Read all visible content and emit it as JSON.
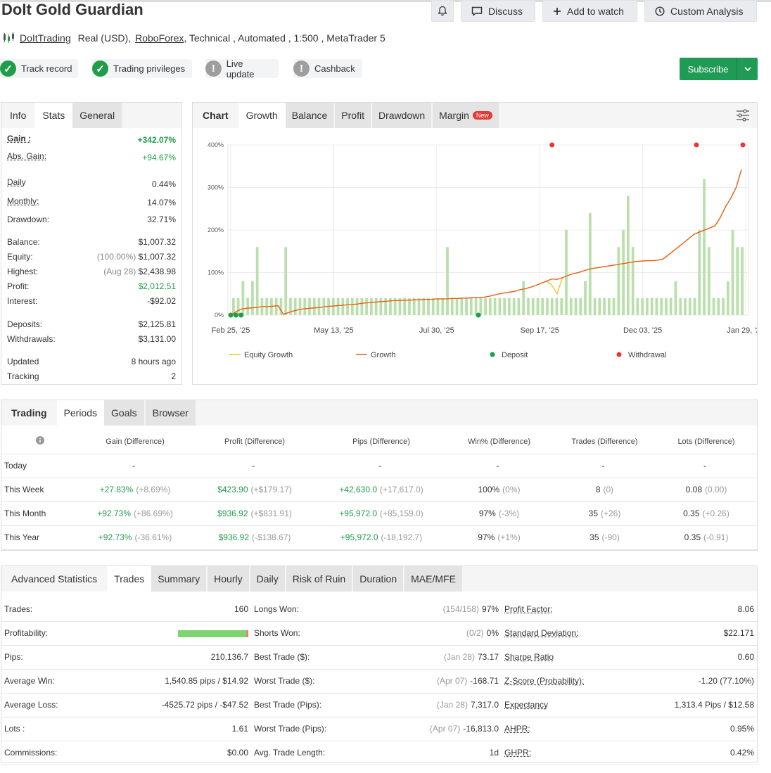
{
  "header": {
    "title": "DoIt Gold Guardian",
    "discuss_label": "Discuss",
    "watch_label": "Add to watch",
    "analysis_label": "Custom Analysis",
    "author": "DoItTrading",
    "account_type": "Real (USD),",
    "broker": "RoboForex",
    "details": ", Technical , Automated , 1:500 , MetaTrader 5"
  },
  "badges": [
    {
      "label": "Track record",
      "status": "ok"
    },
    {
      "label": "Trading privileges",
      "status": "ok"
    },
    {
      "label": "Live update",
      "status": "na"
    },
    {
      "label": "Cashback",
      "status": "na"
    }
  ],
  "subscribe_label": "Subscribe",
  "info": {
    "tabs": [
      "Info",
      "Stats",
      "General"
    ],
    "gain_label": "Gain :",
    "gain": "+342.07%",
    "abs_gain_label": "Abs. Gain:",
    "abs_gain": "+94.67%",
    "daily_label": "Daily",
    "daily": "0.44%",
    "monthly_label": "Monthly:",
    "monthly": "14.07%",
    "drawdown_label": "Drawdown:",
    "drawdown": "32.71%",
    "balance_label": "Balance:",
    "balance": "$1,007.32",
    "equity_label": "Equity:",
    "equity_pct": "(100.00%)",
    "equity": "$1,007.32",
    "highest_label": "Highest:",
    "highest_date": "(Aug 28)",
    "highest": "$2,438.98",
    "profit_label": "Profit:",
    "profit": "$2,012.51",
    "interest_label": "Interest:",
    "interest": "-$92.02",
    "deposits_label": "Deposits:",
    "deposits": "$2,125.81",
    "withdrawals_label": "Withdrawals:",
    "withdrawals": "$3,131.00",
    "updated_label": "Updated",
    "updated": "8 hours ago",
    "tracking_label": "Tracking",
    "tracking": "2"
  },
  "chart_panel": {
    "tabs": [
      "Chart",
      "Growth",
      "Balance",
      "Profit",
      "Drawdown",
      "Margin"
    ],
    "new_badge": "New"
  },
  "chart_data": {
    "type": "line",
    "x_ticks": [
      "Feb 25, '25",
      "May 13, '25",
      "Jul 30, '25",
      "Sep 17, '25",
      "Dec 03, '25",
      "Jan 29, '26"
    ],
    "y_ticks": [
      "0%",
      "100%",
      "200%",
      "300%",
      "400%"
    ],
    "ylim": [
      0,
      400
    ],
    "legend": [
      "Equity Growth",
      "Growth",
      "Deposit",
      "Withdrawal"
    ],
    "legend_position": "bottom",
    "colors": {
      "growth": "#e8591a",
      "equity": "#f0c419",
      "bars": "#b9dfaa",
      "deposit": "#1f9d4a",
      "withdrawal": "#e53935"
    },
    "growth": [
      0,
      8,
      14,
      16,
      17,
      18,
      20,
      20,
      21,
      22,
      2,
      6,
      10,
      13,
      15,
      16,
      17,
      18,
      20,
      21,
      22,
      23,
      24,
      25,
      26,
      28,
      29,
      30,
      31,
      32,
      33,
      34,
      34,
      35,
      35,
      36,
      36,
      37,
      37,
      38,
      38,
      38,
      39,
      39,
      40,
      40,
      41,
      41,
      42,
      44,
      47,
      50,
      52,
      54,
      56,
      60,
      62,
      66,
      70,
      75,
      80,
      85,
      84,
      88,
      93,
      97,
      100,
      104,
      108,
      110,
      112,
      114,
      116,
      118,
      120,
      122,
      124,
      126,
      127,
      128,
      128,
      129,
      131,
      140,
      150,
      160,
      170,
      180,
      190,
      195,
      200,
      205,
      210,
      230,
      255,
      275,
      300,
      342
    ],
    "equity": [
      0,
      8,
      14,
      16,
      17,
      18,
      20,
      20,
      21,
      22,
      2,
      6,
      10,
      13,
      15,
      16,
      17,
      18,
      20,
      21,
      22,
      23,
      24,
      25,
      26,
      28,
      29,
      30,
      31,
      32,
      33,
      34,
      34,
      35,
      35,
      36,
      36,
      37,
      37,
      38,
      38,
      38,
      39,
      39,
      40,
      40,
      41,
      41,
      42,
      44,
      47,
      50,
      52,
      54,
      56,
      60,
      62,
      66,
      70,
      75,
      80,
      70,
      50,
      88,
      93,
      97,
      100,
      104,
      108,
      110,
      112,
      114,
      116,
      118,
      120,
      122,
      124,
      126,
      127,
      128,
      128,
      129,
      131,
      140,
      150,
      160,
      170,
      180,
      190,
      195,
      200,
      205,
      210,
      230,
      255,
      275,
      300,
      342
    ],
    "bars": [
      40,
      40,
      80,
      40,
      80,
      160,
      40,
      40,
      40,
      40,
      40,
      160,
      40,
      40,
      40,
      40,
      40,
      40,
      40,
      40,
      40,
      40,
      40,
      40,
      40,
      40,
      40,
      40,
      40,
      40,
      40,
      40,
      40,
      40,
      40,
      40,
      40,
      40,
      40,
      40,
      40,
      40,
      40,
      40,
      40,
      160,
      40,
      40,
      40,
      40,
      40,
      40,
      40,
      40,
      40,
      40,
      40,
      40,
      40,
      40,
      40,
      80,
      40,
      40,
      40,
      40,
      40,
      40,
      40,
      40,
      200,
      40,
      40,
      40,
      80,
      240,
      40,
      40,
      40,
      40,
      40,
      160,
      200,
      280,
      160,
      40,
      40,
      40,
      40,
      40,
      40,
      40,
      40,
      80,
      40,
      40,
      40,
      40,
      200,
      320,
      160,
      40,
      40,
      40,
      80,
      200,
      160,
      160
    ],
    "deposits_x": [
      0,
      1,
      2,
      48
    ],
    "withdrawals_x": [
      62,
      90,
      99
    ]
  },
  "periods": {
    "tabs": [
      "Trading",
      "Periods",
      "Goals",
      "Browser"
    ],
    "info_icon": "info-icon",
    "headers": [
      "Gain (Difference)",
      "Profit (Difference)",
      "Pips (Difference)",
      "Win% (Difference)",
      "Trades (Difference)",
      "Lots (Difference)"
    ],
    "rows": [
      {
        "label": "Today",
        "gain": "-",
        "gain_d": "",
        "profit": "-",
        "profit_d": "",
        "pips": "-",
        "pips_d": "",
        "win": "-",
        "win_d": "",
        "trades": "-",
        "trades_d": "",
        "lots": "-",
        "lots_d": ""
      },
      {
        "label": "This Week",
        "gain": "+27.83%",
        "gain_d": "(+8.69%)",
        "profit": "$423.90",
        "profit_d": "(+$179.17)",
        "pips": "+42,630.0",
        "pips_d": "(+17,617.0)",
        "win": "100%",
        "win_d": "(0%)",
        "trades": "8",
        "trades_d": "(0)",
        "lots": "0.08",
        "lots_d": "(0.00)"
      },
      {
        "label": "This Month",
        "gain": "+92.73%",
        "gain_d": "(+86.69%)",
        "profit": "$936.92",
        "profit_d": "(+$831.91)",
        "pips": "+95,972.0",
        "pips_d": "(+85,159.0)",
        "win": "97%",
        "win_d": "(-3%)",
        "trades": "35",
        "trades_d": "(+26)",
        "lots": "0.35",
        "lots_d": "(+0.26)"
      },
      {
        "label": "This Year",
        "gain": "+92.73%",
        "gain_d": "(-36.61%)",
        "profit": "$936.92",
        "profit_d": "(-$138.67)",
        "pips": "+95,972.0",
        "pips_d": "(-18,192.7)",
        "win": "97%",
        "win_d": "(+1%)",
        "trades": "35",
        "trades_d": "(-90)",
        "lots": "0.35",
        "lots_d": "(-0.91)"
      }
    ]
  },
  "advanced": {
    "tabs": [
      "Advanced Statistics",
      "Trades",
      "Summary",
      "Hourly",
      "Daily",
      "Risk of Ruin",
      "Duration",
      "MAE/MFE"
    ],
    "profitability_pct": 97,
    "rows": [
      {
        "k1": "Trades:",
        "v1": "160",
        "k2": "Longs Won:",
        "m2": "(154/158)",
        "v2": "97%",
        "k3": "Profit Factor:",
        "v3": "8.06"
      },
      {
        "k1": "Profitability:",
        "v1": "",
        "k2": "Shorts Won:",
        "m2": "(0/2)",
        "v2": "0%",
        "k3": "Standard Deviation:",
        "v3": "$22.171"
      },
      {
        "k1": "Pips:",
        "v1": "210,136.7",
        "k2": "Best Trade ($):",
        "m2": "(Jan 28)",
        "v2": "73.17",
        "k3": "Sharpe Ratio",
        "v3": "0.60"
      },
      {
        "k1": "Average Win:",
        "v1": "1,540.85 pips / $14.92",
        "k2": "Worst Trade ($):",
        "m2": "(Apr 07)",
        "v2": "-168.71",
        "k3": "Z-Score (Probability):",
        "v3": "-1.20 (77.10%)"
      },
      {
        "k1": "Average Loss:",
        "v1": "-4525.72 pips / -$47.52",
        "k2": "Best Trade (Pips):",
        "m2": "(Jan 28)",
        "v2": "7,317.0",
        "k3": "Expectancy",
        "v3": "1,313.4 Pips / $12.58"
      },
      {
        "k1": "Lots :",
        "v1": "1.61",
        "k2": "Worst Trade (Pips):",
        "m2": "(Apr 07)",
        "v2": "-16,813.0",
        "k3": "AHPR:",
        "v3": "0.95%"
      },
      {
        "k1": "Commissions:",
        "v1": "$0.00",
        "k2": "Avg. Trade Length:",
        "m2": "",
        "v2": "1d",
        "k3": "GHPR:",
        "v3": "0.42%"
      }
    ]
  }
}
